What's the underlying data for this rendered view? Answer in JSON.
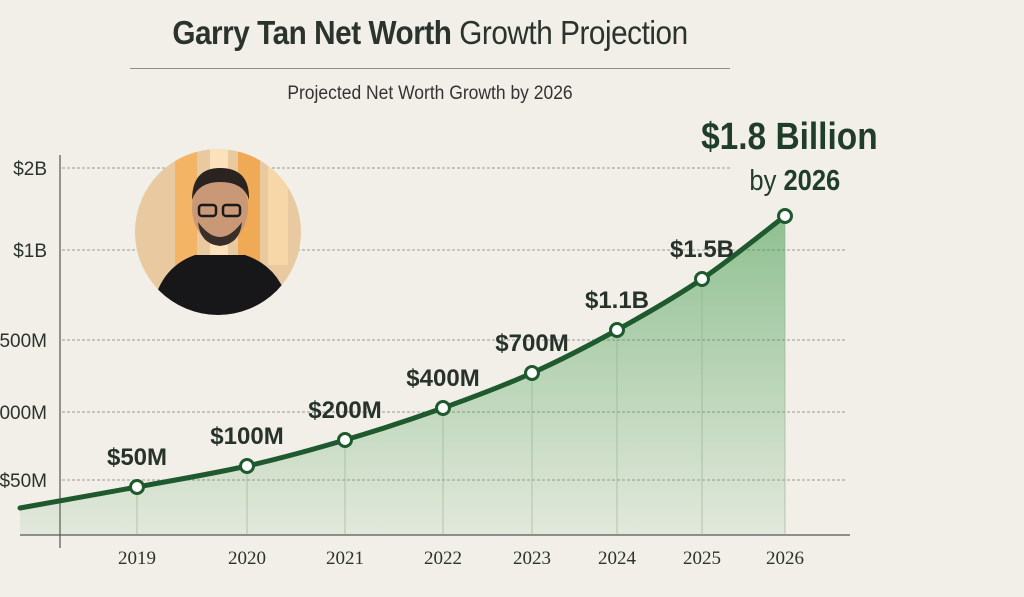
{
  "title_bold": "Garry Tan Net Worth",
  "title_light": "Growth Projection",
  "subtitle": "Projected Net Worth Growth by 2026",
  "chart_data": {
    "type": "area",
    "title": "Garry Tan Net Worth Growth Projection",
    "subtitle": "Projected Net Worth Growth by 2026",
    "categories": [
      "2019",
      "2020",
      "2021",
      "2022",
      "2023",
      "2024",
      "2025",
      "2026"
    ],
    "values": [
      50000000,
      100000000,
      200000000,
      400000000,
      700000000,
      1100000000,
      1500000000,
      1800000000
    ],
    "data_labels": [
      "$50M",
      "$100M",
      "$200M",
      "$400M",
      "$700M",
      "$1.1B",
      "$1.5B",
      ""
    ],
    "y_tick_labels": [
      "$2B",
      "$1B",
      "500M",
      "000M",
      "$50M"
    ],
    "grid": true,
    "annotation": {
      "value": "$1.8 Billion",
      "prefix": "by",
      "year": "2026"
    },
    "colors": {
      "line": "#1e5a2e",
      "fill": "#3f9a4a",
      "grid": "#9a9a94",
      "text": "#2a342c"
    }
  }
}
